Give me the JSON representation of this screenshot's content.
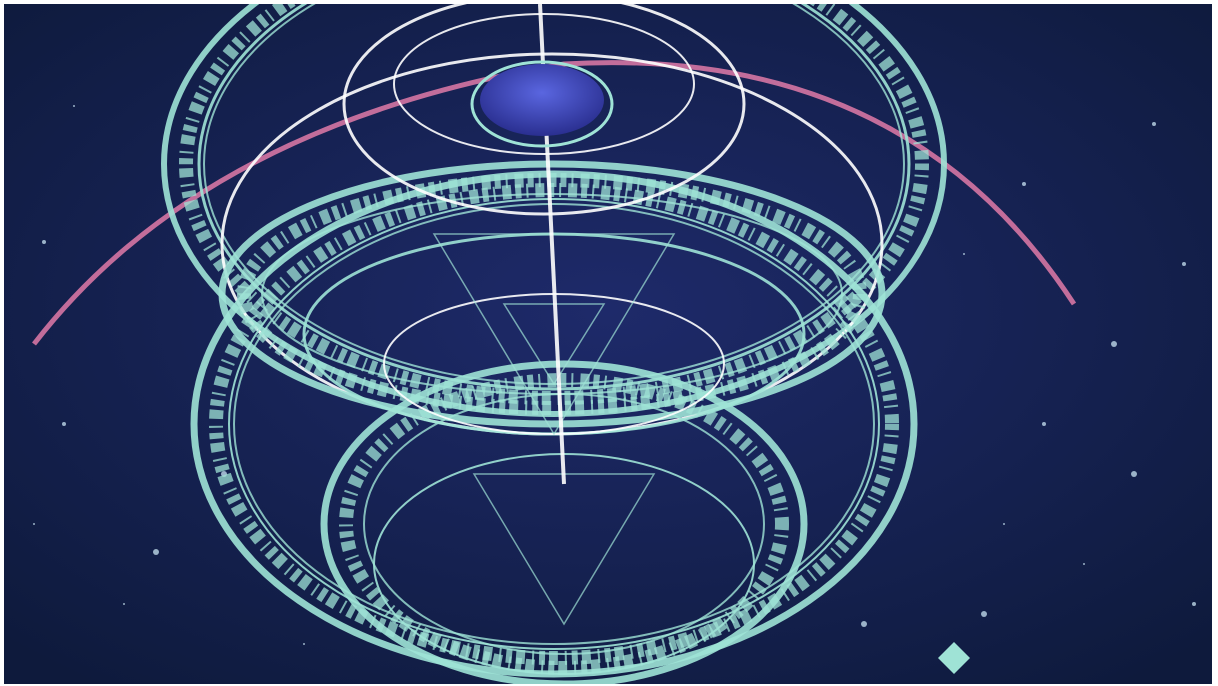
{
  "scene": {
    "palette": {
      "background_outer": "#0e1a3c",
      "background_inner": "#1e2a6a",
      "ring_primary": "#9fe3d6",
      "ring_secondary": "#ffffff",
      "arc_accent": "#e07aa8",
      "core_disc": "#3a44b8",
      "star": "#d6f2ff"
    },
    "elements": {
      "outer_rune_rings": 4,
      "inner_rune_rings": 6,
      "orbit_arcs": 5,
      "accent_arcs": 1
    },
    "icons": [
      "rune-ring-icon",
      "core-disc-icon",
      "diamond-gem-icon",
      "star-icon"
    ]
  }
}
